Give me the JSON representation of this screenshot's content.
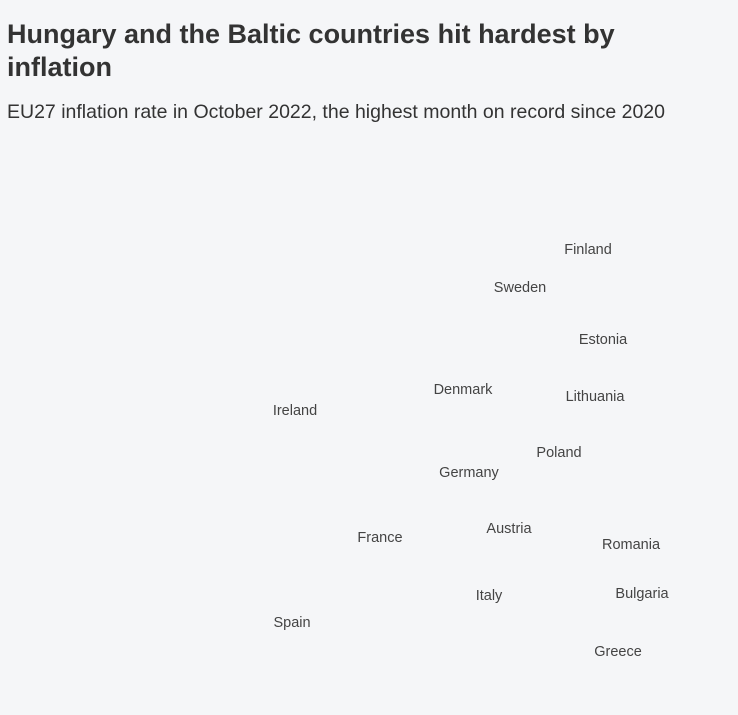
{
  "header": {
    "title": "Hungary and the Baltic countries hit hardest by inflation",
    "subtitle": "EU27 inflation rate in October 2022, the highest month on record since 2020"
  },
  "map": {
    "countries": [
      {
        "id": "finland",
        "label": "Finland"
      },
      {
        "id": "sweden",
        "label": "Sweden"
      },
      {
        "id": "estonia",
        "label": "Estonia"
      },
      {
        "id": "denmark",
        "label": "Denmark"
      },
      {
        "id": "lithuania",
        "label": "Lithuania"
      },
      {
        "id": "ireland",
        "label": "Ireland"
      },
      {
        "id": "poland",
        "label": "Poland"
      },
      {
        "id": "germany",
        "label": "Germany"
      },
      {
        "id": "austria",
        "label": "Austria"
      },
      {
        "id": "france",
        "label": "France"
      },
      {
        "id": "romania",
        "label": "Romania"
      },
      {
        "id": "bulgaria",
        "label": "Bulgaria"
      },
      {
        "id": "italy",
        "label": "Italy"
      },
      {
        "id": "spain",
        "label": "Spain"
      },
      {
        "id": "greece",
        "label": "Greece"
      }
    ]
  },
  "colors": {
    "background": "#f5f6f8",
    "text": "#333333"
  }
}
